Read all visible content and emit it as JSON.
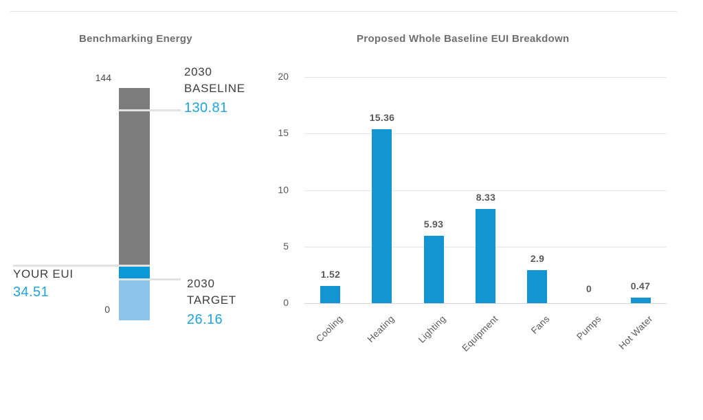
{
  "colors": {
    "accent_blue": "#1295D0",
    "accent_blue_text": "#21A3DC",
    "thermometer_gray": "#7D7D7D",
    "thermometer_blue": "#0999D7",
    "thermometer_light_blue": "#8CC3EA",
    "marker_line": "#E2E2E2",
    "grid_line": "#E5E5E5",
    "axis_line": "#D2D2D2",
    "title_text": "#6F6F6F",
    "label_text": "#3F3F3F",
    "muted_text": "#595959"
  },
  "chart_data": [
    {
      "type": "bar",
      "variant": "benchmark-thermometer",
      "title": "Benchmarking Energy",
      "xlabel": "",
      "ylabel": "",
      "ylim": [
        0,
        144
      ],
      "axis_labels": {
        "top": "144",
        "bottom": "0"
      },
      "segments": [
        {
          "name": "above-your-eui",
          "from": 34.51,
          "to": 144,
          "color": "#7D7D7D"
        },
        {
          "name": "your-eui-to-target",
          "from": 26.16,
          "to": 34.51,
          "color": "#0999D7"
        },
        {
          "name": "below-target",
          "from": 0,
          "to": 26.16,
          "color": "#8CC3EA"
        }
      ],
      "markers": [
        {
          "name": "2030-baseline",
          "label_lines": [
            "2030",
            "BASELINE"
          ],
          "value": 130.81,
          "value_label": "130.81",
          "side": "right"
        },
        {
          "name": "your-eui",
          "label_lines": [
            "YOUR EUI"
          ],
          "value": 34.51,
          "value_label": "34.51",
          "side": "left"
        },
        {
          "name": "2030-target",
          "label_lines": [
            "2030",
            "TARGET"
          ],
          "value": 26.16,
          "value_label": "26.16",
          "side": "right"
        }
      ]
    },
    {
      "type": "bar",
      "title": "Proposed Whole Baseline EUI Breakdown",
      "xlabel": "",
      "ylabel": "",
      "categories": [
        "Cooling",
        "Heating",
        "Lighting",
        "Equipment",
        "Fans",
        "Pumps",
        "Hot Water"
      ],
      "values": [
        1.52,
        15.36,
        5.93,
        8.33,
        2.9,
        0,
        0.47
      ],
      "value_labels": [
        "1.52",
        "15.36",
        "5.93",
        "8.33",
        "2.9",
        "0",
        "0.47"
      ],
      "ylim": [
        0,
        20
      ],
      "yticks": [
        0,
        5,
        10,
        15,
        20
      ],
      "grid": true,
      "legend": false,
      "bar_color": "#1295D0"
    }
  ]
}
